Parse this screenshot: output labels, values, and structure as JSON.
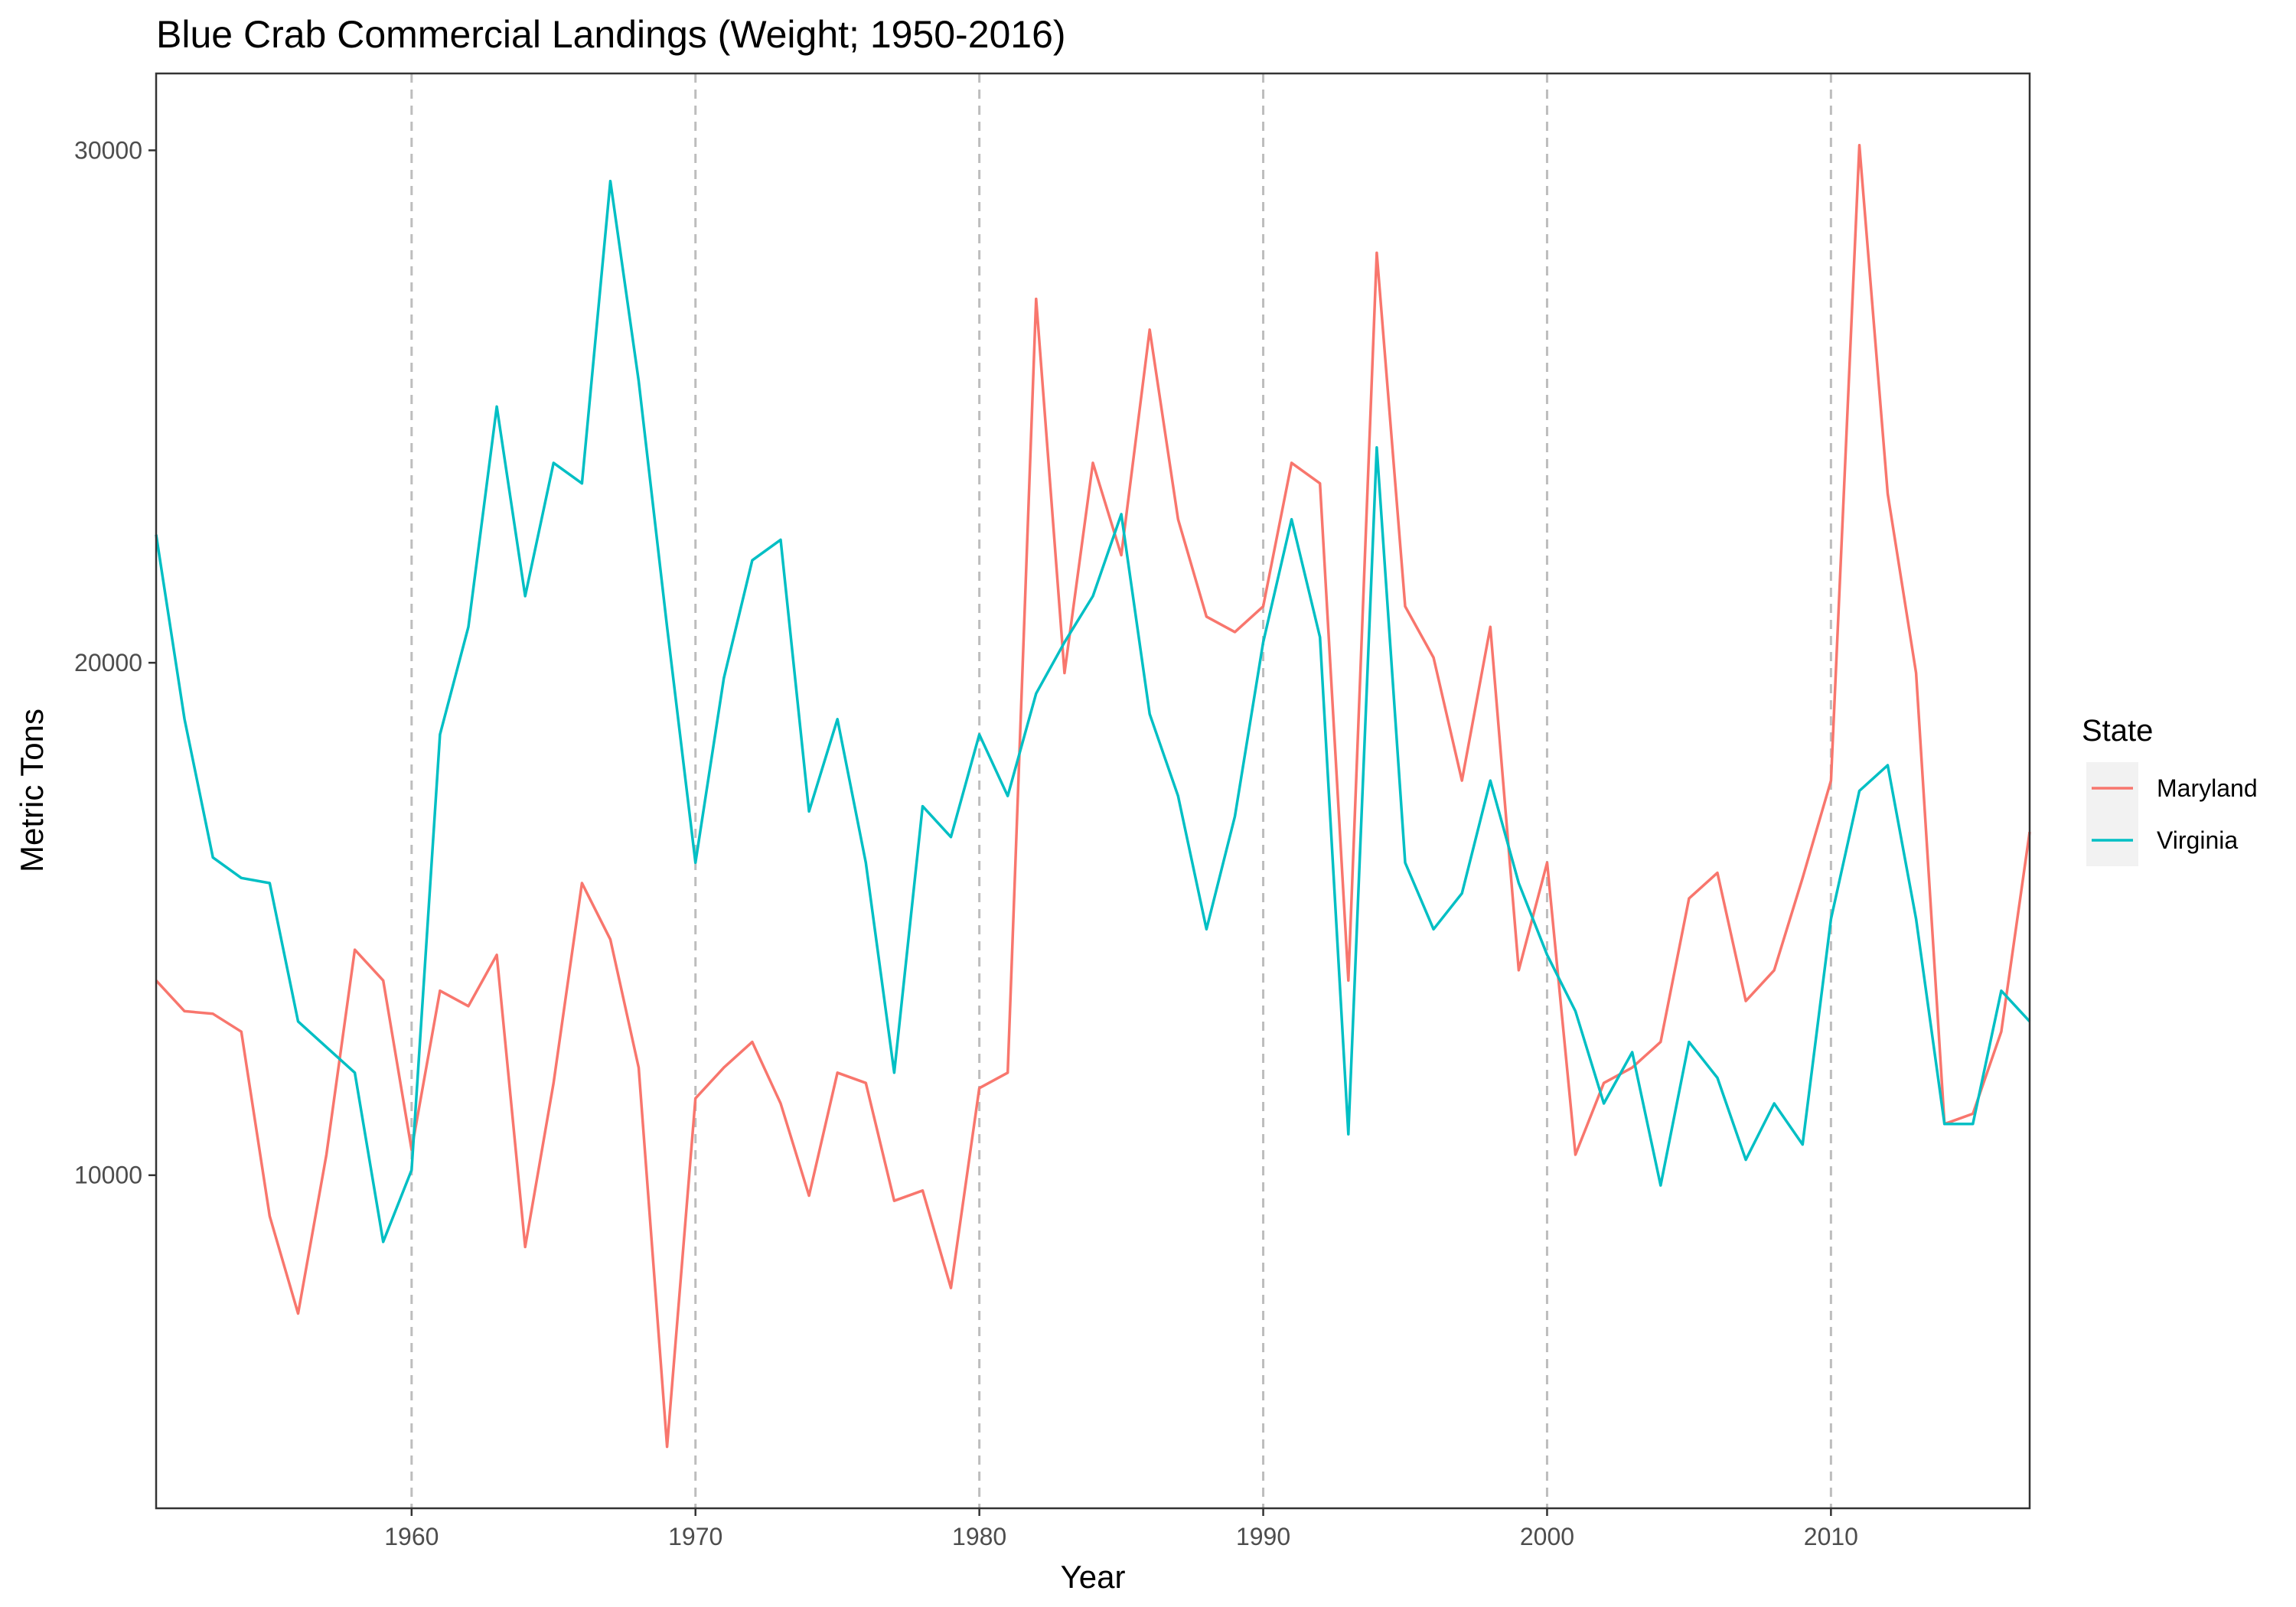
{
  "chart_data": {
    "type": "line",
    "title": "Blue Crab Commercial Landings (Weight; 1950-2016)",
    "xlabel": "Year",
    "ylabel": "Metric Tons",
    "xlim": [
      1951,
      2017
    ],
    "ylim": [
      3500,
      31500
    ],
    "x_ticks": [
      1960,
      1970,
      1980,
      1990,
      2000,
      2010
    ],
    "y_ticks": [
      10000,
      20000,
      30000
    ],
    "vertical_reference_lines": [
      1960,
      1970,
      1980,
      1990,
      2000,
      2010
    ],
    "grid": false,
    "legend": {
      "title": "State",
      "position": "right"
    },
    "x": [
      1951,
      1952,
      1953,
      1954,
      1955,
      1956,
      1957,
      1958,
      1959,
      1960,
      1961,
      1962,
      1963,
      1964,
      1965,
      1966,
      1967,
      1968,
      1969,
      1970,
      1971,
      1972,
      1973,
      1974,
      1975,
      1976,
      1977,
      1978,
      1979,
      1980,
      1981,
      1982,
      1983,
      1984,
      1985,
      1986,
      1987,
      1988,
      1989,
      1990,
      1991,
      1992,
      1993,
      1994,
      1995,
      1996,
      1997,
      1998,
      1999,
      2000,
      2001,
      2002,
      2003,
      2004,
      2005,
      2006,
      2007,
      2008,
      2009,
      2010,
      2011,
      2012,
      2013,
      2014,
      2015,
      2016,
      2017
    ],
    "series": [
      {
        "name": "Maryland",
        "color": "#F8766D",
        "values": [
          13800,
          13200,
          13150,
          12800,
          9200,
          7300,
          10400,
          14400,
          13800,
          10500,
          13600,
          13300,
          14300,
          8600,
          11800,
          15700,
          14600,
          12100,
          4700,
          11500,
          12100,
          12600,
          11400,
          9600,
          12000,
          11800,
          9500,
          9700,
          7800,
          11700,
          12000,
          27100,
          19800,
          23900,
          22100,
          26500,
          22800,
          20900,
          20600,
          21100,
          23900,
          23500,
          13800,
          28000,
          21100,
          20100,
          17700,
          20700,
          14000,
          16100,
          10400,
          11800,
          12100,
          12600,
          15400,
          15900,
          13400,
          14000,
          15800,
          17700,
          30100,
          23300,
          19800,
          11000,
          11200,
          12800,
          16700
        ]
      },
      {
        "name": "Virginia",
        "color": "#00BFC4",
        "values": [
          22500,
          18900,
          16200,
          15800,
          15700,
          13000,
          12500,
          12000,
          8700,
          10100,
          18600,
          20700,
          25000,
          21300,
          23900,
          23500,
          29400,
          25500,
          20700,
          16100,
          19700,
          22000,
          22400,
          17100,
          18900,
          16100,
          12000,
          17200,
          16600,
          18600,
          17400,
          19400,
          20400,
          21300,
          22900,
          19000,
          17400,
          14800,
          17000,
          20400,
          22800,
          20500,
          10800,
          24200,
          16100,
          14800,
          15500,
          17700,
          15700,
          14300,
          13200,
          11400,
          12400,
          9800,
          12600,
          11900,
          10300,
          11400,
          10600,
          15000,
          17500,
          18000,
          15000,
          11000,
          11000,
          13600,
          13000
        ]
      }
    ]
  }
}
